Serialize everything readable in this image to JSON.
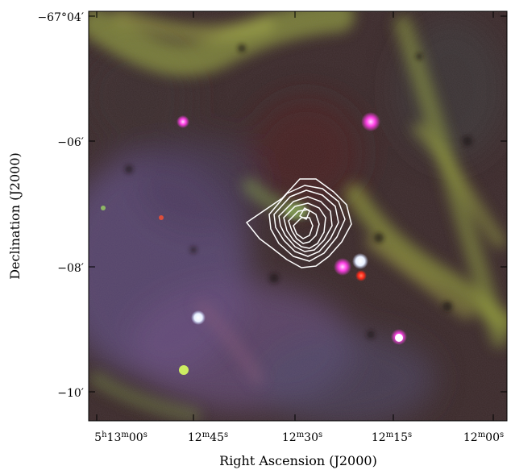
{
  "figure": {
    "x_axis_label": "Right Ascension (J2000)",
    "y_axis_label": "Declination (J2000)",
    "x_ticks": [
      {
        "id": "ra-5h13m00s",
        "h": "5",
        "hsup": "h",
        "m": "13",
        "msup": "m",
        "s": "00",
        "ssup": "s"
      },
      {
        "id": "ra-12m45s",
        "m": "12",
        "msup": "m",
        "s": "45",
        "ssup": "s"
      },
      {
        "id": "ra-12m30s",
        "m": "12",
        "msup": "m",
        "s": "30",
        "ssup": "s"
      },
      {
        "id": "ra-12m15s",
        "m": "12",
        "msup": "m",
        "s": "15",
        "ssup": "s"
      },
      {
        "id": "ra-12m00s",
        "m": "12",
        "msup": "m",
        "s": "00",
        "ssup": "s"
      }
    ],
    "y_ticks": [
      {
        "id": "dec-67d04m",
        "label": "−67°04′"
      },
      {
        "id": "dec-06m",
        "label": "−06′"
      },
      {
        "id": "dec-08m",
        "label": "−08′"
      },
      {
        "id": "dec-10m",
        "label": "−10′"
      }
    ],
    "colors": {
      "background": "#3a2a2a",
      "filament": "#8a9a3a",
      "nebula_violet": "#6a4e7e",
      "contour": "#ffffff",
      "star_magenta": "#ff3fe0",
      "star_white": "#ffffff",
      "star_red": "#ff3a2a"
    }
  }
}
